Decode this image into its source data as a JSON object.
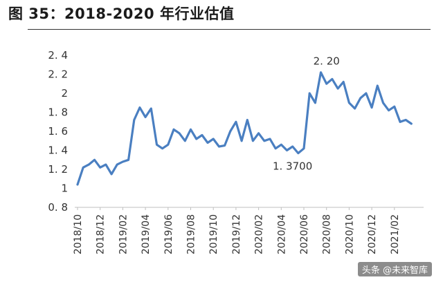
{
  "page": {
    "title": "图 35：2018-2020 年行业估值",
    "watermark": "头条 @未来智库"
  },
  "chart_data": {
    "type": "line",
    "title": "",
    "xlabel": "",
    "ylabel": "",
    "ylim": [
      0.8,
      2.4
    ],
    "yticks": [
      "0. 8",
      "1",
      "1. 2",
      "1. 4",
      "1. 6",
      "1. 8",
      "2",
      "2. 2",
      "2. 4"
    ],
    "ytick_values": [
      0.8,
      1.0,
      1.2,
      1.4,
      1.6,
      1.8,
      2.0,
      2.2,
      2.4
    ],
    "xticks": [
      "2018/10",
      "2018/12",
      "2019/02",
      "2019/04",
      "2019/06",
      "2019/08",
      "2019/10",
      "2019/12",
      "2020/02",
      "2020/04",
      "2020/06",
      "2020/08",
      "2020/10",
      "2020/12",
      "2021/02"
    ],
    "grid": false,
    "line_color": "#4a7fc1",
    "annotations": [
      {
        "text": "2. 20",
        "x": "2020/08",
        "y": 2.2
      },
      {
        "text": "1. 3700",
        "x": "2020/05",
        "y": 1.37
      }
    ],
    "series": [
      {
        "x": [
          "2018/10",
          "2018/10",
          "2018/11",
          "2018/11",
          "2018/12",
          "2018/12",
          "2019/01",
          "2019/01",
          "2019/02",
          "2019/02",
          "2019/03",
          "2019/03",
          "2019/04",
          "2019/04",
          "2019/05",
          "2019/05",
          "2019/06",
          "2019/06",
          "2019/07",
          "2019/07",
          "2019/08",
          "2019/08",
          "2019/09",
          "2019/09",
          "2019/10",
          "2019/10",
          "2019/11",
          "2019/11",
          "2019/12",
          "2019/12",
          "2020/01",
          "2020/01",
          "2020/02",
          "2020/02",
          "2020/03",
          "2020/03",
          "2020/04",
          "2020/04",
          "2020/05",
          "2020/05",
          "2020/06",
          "2020/06",
          "2020/07",
          "2020/07",
          "2020/08",
          "2020/08",
          "2020/09",
          "2020/09",
          "2020/10",
          "2020/10",
          "2020/11",
          "2020/11",
          "2020/12",
          "2020/12",
          "2021/01",
          "2021/01",
          "2021/02",
          "2021/02",
          "2021/03",
          "2021/03"
        ],
        "values": [
          1.04,
          1.22,
          1.25,
          1.3,
          1.22,
          1.25,
          1.15,
          1.25,
          1.28,
          1.3,
          1.72,
          1.85,
          1.75,
          1.84,
          1.46,
          1.42,
          1.46,
          1.62,
          1.58,
          1.5,
          1.62,
          1.52,
          1.56,
          1.48,
          1.52,
          1.44,
          1.45,
          1.6,
          1.7,
          1.5,
          1.72,
          1.5,
          1.58,
          1.5,
          1.52,
          1.42,
          1.46,
          1.4,
          1.44,
          1.37,
          1.42,
          2.0,
          1.9,
          2.22,
          2.1,
          2.15,
          2.05,
          2.12,
          1.9,
          1.84,
          1.95,
          2.0,
          1.85,
          2.08,
          1.9,
          1.82,
          1.86,
          1.7,
          1.72,
          1.68
        ]
      }
    ]
  }
}
